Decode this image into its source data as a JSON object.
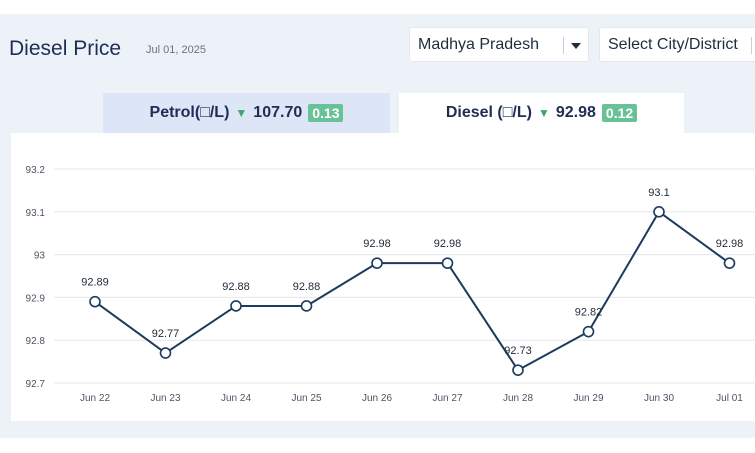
{
  "header": {
    "title": "Diesel Price",
    "date": "Jul 01, 2025"
  },
  "filters": {
    "state_value": "Madhya Pradesh",
    "city_placeholder": "Select City/District"
  },
  "tabs": [
    {
      "label": "Petrol(□/L)",
      "price": "107.70",
      "change": "0.13",
      "trend": "down",
      "active": false
    },
    {
      "label": "Diesel (□/L)",
      "price": "92.98",
      "change": "0.12",
      "trend": "down",
      "active": true
    }
  ],
  "colors": {
    "line": "#1f3a5f",
    "change_badge": "#68c197",
    "down_arrow": "#3aa76d",
    "active_tab_bg": "#ffffff",
    "inactive_tab_bg": "#dce6f6"
  },
  "chart_data": {
    "type": "line",
    "categories": [
      "Jun 22",
      "Jun 23",
      "Jun 24",
      "Jun 25",
      "Jun 26",
      "Jun 27",
      "Jun 28",
      "Jun 29",
      "Jun 30",
      "Jul 01"
    ],
    "values": [
      92.89,
      92.77,
      92.88,
      92.88,
      92.98,
      92.98,
      92.73,
      92.82,
      93.1,
      92.98
    ],
    "value_labels": [
      "92.89",
      "92.77",
      "92.88",
      "92.88",
      "92.98",
      "92.98",
      "92.73",
      "92.82",
      "93.1",
      "92.98"
    ],
    "y_ticks": [
      "93.2",
      "93.1",
      "93",
      "92.9",
      "92.8",
      "92.7"
    ],
    "ylim": [
      92.7,
      93.2
    ],
    "grid": true
  }
}
